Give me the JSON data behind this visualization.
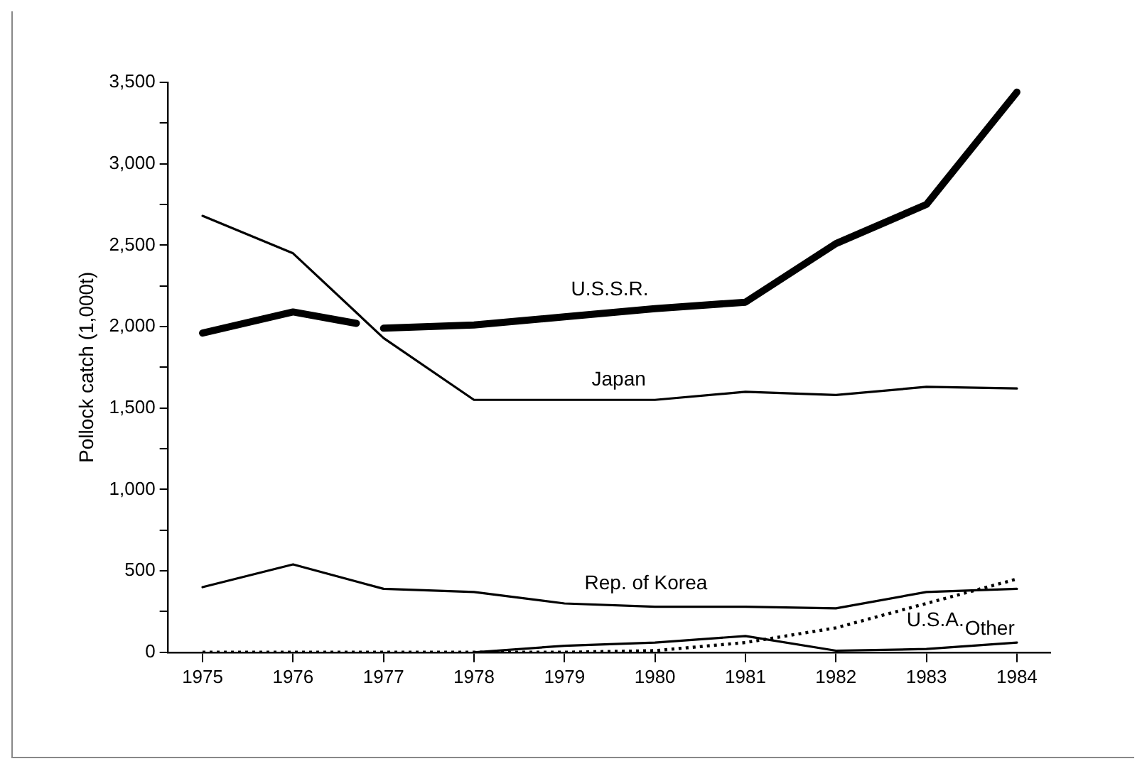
{
  "chart_data": {
    "type": "line",
    "ylabel": "Pollock catch (1,000t)",
    "x": [
      1975,
      1976,
      1977,
      1978,
      1979,
      1980,
      1981,
      1982,
      1983,
      1984
    ],
    "xlim": [
      1974.62,
      1984.37
    ],
    "xticks": [
      1975,
      1976,
      1977,
      1978,
      1979,
      1980,
      1981,
      1982,
      1983,
      1984
    ],
    "ylim": [
      0,
      3500
    ],
    "yticks": [
      {
        "value": 0,
        "label": "0"
      },
      {
        "value": 250,
        "label": null
      },
      {
        "value": 500,
        "label": "500"
      },
      {
        "value": 750,
        "label": null
      },
      {
        "value": 1000,
        "label": "1,000"
      },
      {
        "value": 1250,
        "label": null
      },
      {
        "value": 1500,
        "label": "1,500"
      },
      {
        "value": 1750,
        "label": null
      },
      {
        "value": 2000,
        "label": "2,000"
      },
      {
        "value": 2250,
        "label": null
      },
      {
        "value": 2500,
        "label": "2,500"
      },
      {
        "value": 2750,
        "label": null
      },
      {
        "value": 3000,
        "label": "3,000"
      },
      {
        "value": 3250,
        "label": null
      },
      {
        "value": 3500,
        "label": "3,500"
      }
    ],
    "grid": false,
    "legend": false,
    "marker": "none",
    "series": [
      {
        "name": "U.S.S.R.",
        "color": "#000000",
        "line_style": "solid",
        "x": [
          1975,
          1976,
          1976.7,
          1976.85,
          1977,
          1978,
          1979,
          1980,
          1981,
          1982,
          1983,
          1984
        ],
        "values": [
          1960,
          2090,
          2020,
          null,
          1990,
          2010,
          2060,
          2110,
          2150,
          2510,
          2750,
          3440
        ]
      },
      {
        "name": "Japan",
        "color": "#000000",
        "line_style": "solid",
        "values": [
          2680,
          2450,
          1930,
          1550,
          1550,
          1550,
          1600,
          1580,
          1630,
          1620
        ]
      },
      {
        "name": "Rep. of Korea",
        "color": "#000000",
        "line_style": "solid",
        "values": [
          400,
          540,
          390,
          370,
          300,
          280,
          280,
          270,
          370,
          390
        ]
      },
      {
        "name": "U.S.A.",
        "color": "#000000",
        "line_style": "dotted",
        "values": [
          0,
          0,
          0,
          0,
          0,
          10,
          60,
          150,
          300,
          450
        ]
      },
      {
        "name": "Other",
        "color": "#000000",
        "line_style": "solid",
        "x": [
          1978,
          1979,
          1980,
          1981,
          1982,
          1983,
          1984
        ],
        "values": [
          0,
          40,
          60,
          100,
          10,
          20,
          60
        ]
      }
    ]
  }
}
